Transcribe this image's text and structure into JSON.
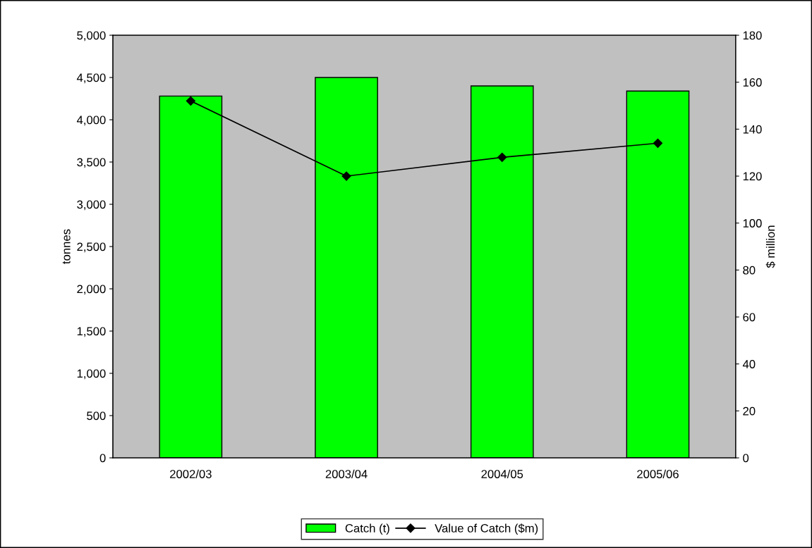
{
  "chart_data": {
    "type": "bar",
    "ylabel": "tonnes",
    "y2label": "$ million",
    "categories": [
      "2002/03",
      "2003/04",
      "2004/05",
      "2005/06"
    ],
    "series": [
      {
        "name": "Catch (t)",
        "color": "#00ff00",
        "values": [
          4280,
          4500,
          4400,
          4340
        ]
      },
      {
        "name": "Value of Catch ($m)",
        "type": "line",
        "axis": "y2",
        "color": "#000000",
        "marker": "diamond",
        "values": [
          152,
          120,
          128,
          134
        ]
      }
    ],
    "ylim": [
      0,
      5000
    ],
    "yticks": [
      {
        "value": 0,
        "label": "0"
      },
      {
        "value": 500,
        "label": "500"
      },
      {
        "value": 1000,
        "label": "1,000"
      },
      {
        "value": 1500,
        "label": "1,500"
      },
      {
        "value": 2000,
        "label": "2,000"
      },
      {
        "value": 2500,
        "label": "2,500"
      },
      {
        "value": 3000,
        "label": "3,000"
      },
      {
        "value": 3500,
        "label": "3,500"
      },
      {
        "value": 4000,
        "label": "4,000"
      },
      {
        "value": 4500,
        "label": "4,500"
      },
      {
        "value": 5000,
        "label": "5,000"
      }
    ],
    "y2lim": [
      0,
      180
    ],
    "y2ticks": [
      0,
      20,
      40,
      60,
      80,
      100,
      120,
      140,
      160,
      180
    ],
    "grid": false,
    "legend": "bottom"
  }
}
